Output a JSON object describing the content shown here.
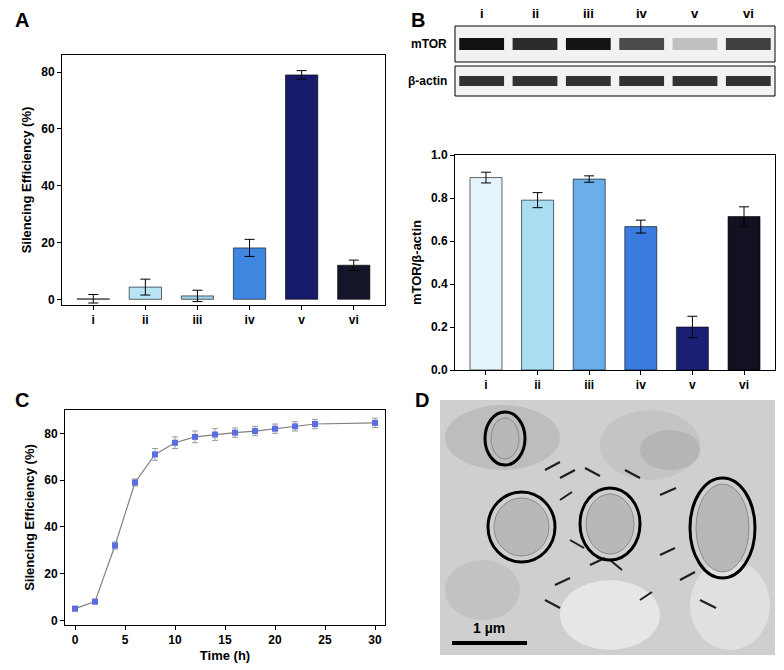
{
  "chart_data": [
    {
      "panel_label": "A",
      "type": "bar",
      "categories": [
        "i",
        "ii",
        "iii",
        "iv",
        "v",
        "vi"
      ],
      "values": [
        0.2,
        4.3,
        1.2,
        18.1,
        79.0,
        12.0
      ],
      "errors": [
        1.5,
        2.8,
        2.0,
        3.0,
        1.5,
        1.8
      ],
      "colors": [
        "#e4f4fb",
        "#b9e4f5",
        "#9fd0f0",
        "#3f86e0",
        "#161a6b",
        "#15152a"
      ],
      "y_label": "Silencing Efficiency (%)",
      "ylim": [
        -2,
        86
      ],
      "yticks": [
        0,
        20,
        40,
        60,
        80
      ]
    },
    {
      "panel_label": "B",
      "type": "bar",
      "categories": [
        "i",
        "ii",
        "iii",
        "iv",
        "v",
        "vi"
      ],
      "values": [
        0.895,
        0.79,
        0.888,
        0.667,
        0.2,
        0.714
      ],
      "errors": [
        0.025,
        0.035,
        0.015,
        0.03,
        0.05,
        0.045
      ],
      "colors": [
        "#e4f4fb",
        "#a9ddf2",
        "#6aaeea",
        "#3b7be0",
        "#1a1f73",
        "#111122"
      ],
      "y_label": "mTOR/β-actin",
      "ylim": [
        0,
        1.0
      ],
      "yticks": [
        {
          "value": 0,
          "label": "0.0"
        },
        {
          "value": 0.2,
          "label": "0.2"
        },
        {
          "value": 0.4,
          "label": "0.4"
        },
        {
          "value": 0.6,
          "label": "0.6"
        },
        {
          "value": 0.8,
          "label": "0.8"
        },
        {
          "value": 1.0,
          "label": "1.0"
        }
      ],
      "blot_rows": [
        "mTOR",
        "β-actin"
      ]
    },
    {
      "panel_label": "C",
      "type": "line",
      "x": [
        0,
        2,
        4,
        6,
        8,
        10,
        12,
        14,
        16,
        18,
        20,
        22,
        24,
        30
      ],
      "values": [
        5,
        8,
        32,
        59,
        71,
        76,
        78.5,
        79.5,
        80.3,
        81,
        82,
        83,
        84,
        84.5
      ],
      "errors": [
        1,
        1,
        1.5,
        1.5,
        2.5,
        2.5,
        2.5,
        2.5,
        2,
        2,
        2,
        2,
        2,
        2
      ],
      "color": "#5b6ee1",
      "marker": "square",
      "x_label": "Time (h)",
      "y_label": "Silencing Efficiency (%)",
      "xlim": [
        -1,
        31
      ],
      "xticks": [
        0,
        5,
        10,
        15,
        20,
        25,
        30
      ],
      "ylim": [
        -2,
        90
      ],
      "yticks": [
        0,
        20,
        40,
        60,
        80
      ]
    }
  ],
  "image": {
    "panel_label": "D",
    "scale_bar": "1 µm"
  }
}
